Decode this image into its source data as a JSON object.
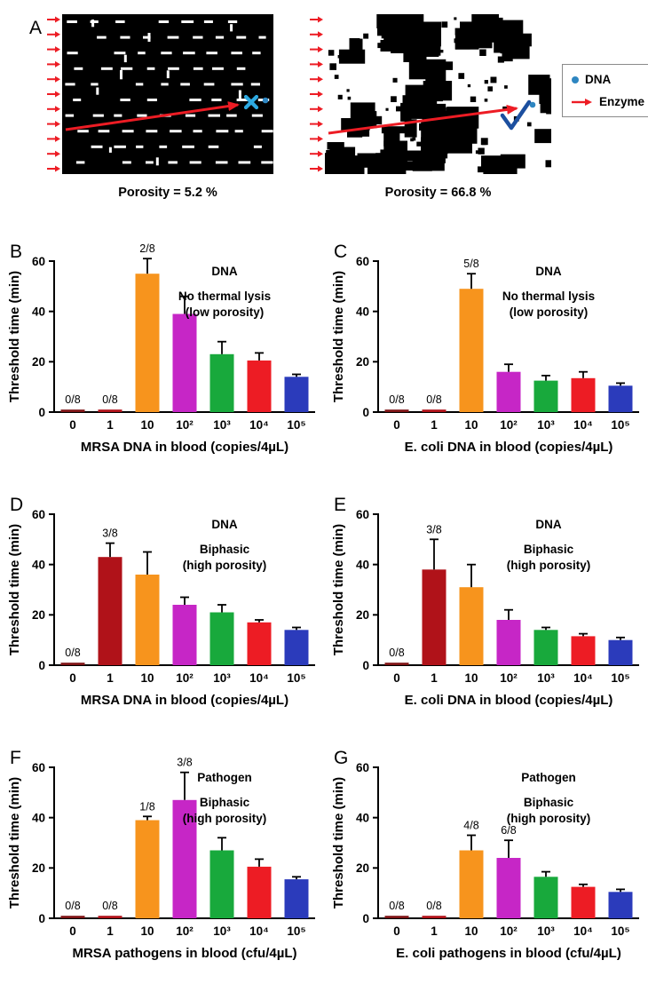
{
  "panel_a": {
    "label": "A",
    "images": [
      {
        "caption": "Porosity = 5.2 %",
        "porosity_percent": 5.2,
        "result_marker": "✕"
      },
      {
        "caption": "Porosity = 66.8 %",
        "porosity_percent": 66.8,
        "result_marker": "✓"
      }
    ],
    "legend": {
      "items": [
        {
          "label": "DNA",
          "marker": "dot",
          "color": "#2e86c1"
        },
        {
          "label": "Enzyme",
          "marker": "arrow",
          "color": "#ed1c24"
        }
      ]
    }
  },
  "palette": {
    "bar_colors": [
      "#7f1416",
      "#b01219",
      "#f7941d",
      "#c626c6",
      "#18a93c",
      "#ed1c24",
      "#2b3bbb"
    ],
    "error_bar_color": "#000000",
    "axis_color": "#000000",
    "enzyme_color": "#ed1c24",
    "dna_dot_color": "#2e86c1",
    "blocked_x_color": "#2da9e1",
    "check_color": "#1c4f9f"
  },
  "chart_data": [
    {
      "panel": "B",
      "type": "bar",
      "title_lines": [
        "DNA",
        "No thermal lysis",
        "(low porosity)"
      ],
      "xlabel": "MRSA DNA in blood (copies/4µL)",
      "ylabel": "Threshold time (min)",
      "ylim": [
        0,
        60
      ],
      "yticks": [
        0,
        20,
        40,
        60
      ],
      "categories": [
        "0",
        "1",
        "10",
        "10²",
        "10³",
        "10⁴",
        "10⁵"
      ],
      "values": [
        1,
        1,
        55,
        39,
        23,
        20.5,
        14
      ],
      "errors": [
        0,
        0,
        6,
        7,
        5,
        3,
        1
      ],
      "annotations": [
        {
          "index": 0,
          "text": "0/8"
        },
        {
          "index": 1,
          "text": "0/8"
        },
        {
          "index": 2,
          "text": "2/8"
        }
      ]
    },
    {
      "panel": "C",
      "type": "bar",
      "title_lines": [
        "DNA",
        "No thermal lysis",
        "(low porosity)"
      ],
      "xlabel": "E. coli DNA in blood (copies/4µL)",
      "ylabel": "Threshold time (min)",
      "ylim": [
        0,
        60
      ],
      "yticks": [
        0,
        20,
        40,
        60
      ],
      "categories": [
        "0",
        "1",
        "10",
        "10²",
        "10³",
        "10⁴",
        "10⁵"
      ],
      "values": [
        1,
        1,
        49,
        16,
        12.5,
        13.5,
        10.5
      ],
      "errors": [
        0,
        0,
        6,
        3,
        2,
        2.5,
        1
      ],
      "annotations": [
        {
          "index": 0,
          "text": "0/8"
        },
        {
          "index": 1,
          "text": "0/8"
        },
        {
          "index": 2,
          "text": "5/8"
        }
      ]
    },
    {
      "panel": "D",
      "type": "bar",
      "title_lines": [
        "DNA",
        "Biphasic",
        "(high porosity)"
      ],
      "xlabel": "MRSA DNA in blood (copies/4µL)",
      "ylabel": "Threshold time (min)",
      "ylim": [
        0,
        60
      ],
      "yticks": [
        0,
        20,
        40,
        60
      ],
      "categories": [
        "0",
        "1",
        "10",
        "10²",
        "10³",
        "10⁴",
        "10⁵"
      ],
      "values": [
        1,
        43,
        36,
        24,
        21,
        17,
        14
      ],
      "errors": [
        0,
        5.5,
        9,
        3,
        3,
        1,
        1
      ],
      "annotations": [
        {
          "index": 0,
          "text": "0/8"
        },
        {
          "index": 1,
          "text": "3/8"
        }
      ]
    },
    {
      "panel": "E",
      "type": "bar",
      "title_lines": [
        "DNA",
        "Biphasic",
        "(high porosity)"
      ],
      "xlabel": "E. coli DNA in blood (copies/4µL)",
      "ylabel": "Threshold time (min)",
      "ylim": [
        0,
        60
      ],
      "yticks": [
        0,
        20,
        40,
        60
      ],
      "categories": [
        "0",
        "1",
        "10",
        "10²",
        "10³",
        "10⁴",
        "10⁵"
      ],
      "values": [
        1,
        38,
        31,
        18,
        14,
        11.5,
        10
      ],
      "errors": [
        0,
        12,
        9,
        4,
        1,
        1,
        1
      ],
      "annotations": [
        {
          "index": 0,
          "text": "0/8"
        },
        {
          "index": 1,
          "text": "3/8"
        }
      ]
    },
    {
      "panel": "F",
      "type": "bar",
      "title_lines": [
        "Pathogen",
        "Biphasic",
        "(high porosity)"
      ],
      "xlabel": "MRSA pathogens in blood (cfu/4µL)",
      "ylabel": "Threshold time (min)",
      "ylim": [
        0,
        60
      ],
      "yticks": [
        0,
        20,
        40,
        60
      ],
      "categories": [
        "0",
        "1",
        "10",
        "10²",
        "10³",
        "10⁴",
        "10⁵"
      ],
      "values": [
        1,
        1,
        39,
        47,
        27,
        20.5,
        15.5
      ],
      "errors": [
        0,
        0,
        1.5,
        11,
        5,
        3,
        1
      ],
      "annotations": [
        {
          "index": 0,
          "text": "0/8"
        },
        {
          "index": 1,
          "text": "0/8"
        },
        {
          "index": 2,
          "text": "1/8"
        },
        {
          "index": 3,
          "text": "3/8"
        }
      ]
    },
    {
      "panel": "G",
      "type": "bar",
      "title_lines": [
        "Pathogen",
        "Biphasic",
        "(high porosity)"
      ],
      "xlabel": "E. coli pathogens in blood (cfu/4µL)",
      "ylabel": "Threshold time (min)",
      "ylim": [
        0,
        60
      ],
      "yticks": [
        0,
        20,
        40,
        60
      ],
      "categories": [
        "0",
        "1",
        "10",
        "10²",
        "10³",
        "10⁴",
        "10⁵"
      ],
      "values": [
        1,
        1,
        27,
        24,
        16.5,
        12.5,
        10.5
      ],
      "errors": [
        0,
        0,
        6,
        7,
        2,
        1,
        1
      ],
      "annotations": [
        {
          "index": 0,
          "text": "0/8"
        },
        {
          "index": 1,
          "text": "0/8"
        },
        {
          "index": 2,
          "text": "4/8"
        },
        {
          "index": 3,
          "text": "6/8"
        }
      ]
    }
  ]
}
